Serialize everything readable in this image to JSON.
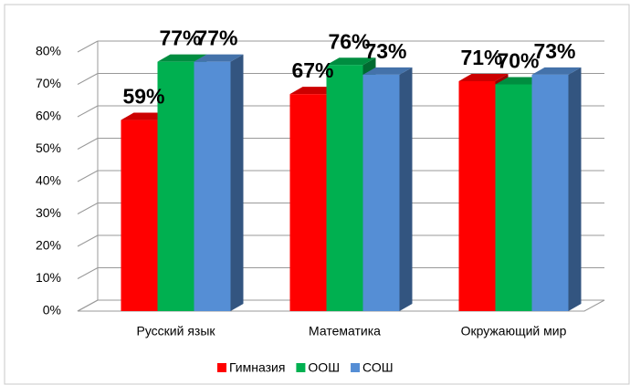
{
  "chart_data": {
    "type": "bar3d",
    "categories": [
      "Русский язык",
      "Математика",
      "Окружающий мир"
    ],
    "series": [
      {
        "name": "Гимназия",
        "color": "#ff0000",
        "values": [
          59,
          67,
          71
        ],
        "value_labels": [
          "59%",
          "67%",
          "71%"
        ]
      },
      {
        "name": "ООШ",
        "color": "#00b050",
        "values": [
          77,
          76,
          70
        ],
        "value_labels": [
          "77%",
          "76%",
          "70%"
        ]
      },
      {
        "name": "СОШ",
        "color": "#558ed5",
        "values": [
          77,
          73,
          73
        ],
        "value_labels": [
          "77%",
          "73%",
          "73%"
        ]
      }
    ],
    "ylim": [
      0,
      80
    ],
    "yticks": [
      {
        "value": 0,
        "label": "0%"
      },
      {
        "value": 10,
        "label": "10%"
      },
      {
        "value": 20,
        "label": "20%"
      },
      {
        "value": 30,
        "label": "30%"
      },
      {
        "value": 40,
        "label": "40%"
      },
      {
        "value": 50,
        "label": "50%"
      },
      {
        "value": 60,
        "label": "60%"
      },
      {
        "value": 70,
        "label": "70%"
      },
      {
        "value": 80,
        "label": "80%"
      }
    ],
    "grid": true,
    "legend": "bottom"
  }
}
